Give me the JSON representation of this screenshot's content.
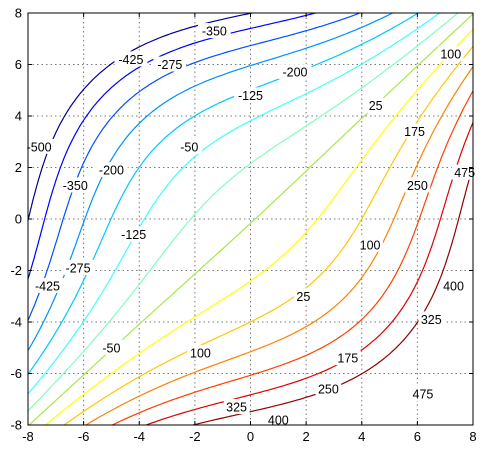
{
  "chart_data": {
    "type": "contour",
    "title": "",
    "xlabel": "",
    "ylabel": "",
    "xlim": [
      -8,
      8
    ],
    "ylim": [
      -8,
      8
    ],
    "grid": true,
    "x_ticks": [
      -8,
      -6,
      -4,
      -2,
      0,
      2,
      4,
      6,
      8
    ],
    "y_ticks": [
      -8,
      -6,
      -4,
      -2,
      0,
      2,
      4,
      6,
      8
    ],
    "x_tick_labels": [
      "-8",
      "-6",
      "-4",
      "-2",
      "0",
      "2",
      "4",
      "6",
      "8"
    ],
    "y_tick_labels": [
      "-8",
      "-6",
      "-4",
      "-2",
      "0",
      "2",
      "4",
      "6",
      "8"
    ],
    "levels": [
      -500,
      -425,
      -350,
      -275,
      -200,
      -125,
      -50,
      25,
      100,
      175,
      250,
      325,
      400,
      475
    ],
    "level_colors": [
      "#00008f",
      "#0000ff",
      "#0050ff",
      "#0090ff",
      "#00c8ff",
      "#40ffff",
      "#7fffbf",
      "#a8e848",
      "#ffff00",
      "#ffc800",
      "#ff8000",
      "#ff4000",
      "#e00000",
      "#8f0000"
    ],
    "contour_labels": [
      {
        "level": -350,
        "text": "-350",
        "x": -1.3,
        "y": 7.3
      },
      {
        "level": -425,
        "text": -425,
        "x": -4.3,
        "y": 6.2
      },
      {
        "level": -275,
        "text": -275,
        "x": -2.9,
        "y": 6.0
      },
      {
        "level": -200,
        "text": -200,
        "x": 1.6,
        "y": 5.7
      },
      {
        "level": -125,
        "text": -125,
        "x": 0.0,
        "y": 4.8
      },
      {
        "level": -50,
        "text": -50,
        "x": -2.2,
        "y": 2.8
      },
      {
        "level": 25,
        "text": 25,
        "x": 4.5,
        "y": 4.4
      },
      {
        "level": 100,
        "text": 100,
        "x": 7.2,
        "y": 6.4
      },
      {
        "level": 175,
        "text": 175,
        "x": 5.9,
        "y": 3.4
      },
      {
        "level": 250,
        "text": 250,
        "x": 6.0,
        "y": 1.3
      },
      {
        "level": 475,
        "text": 475,
        "x": 7.7,
        "y": 1.8
      },
      {
        "level": -500,
        "text": "-500",
        "x": -7.6,
        "y": 2.8
      },
      {
        "level": -350,
        "text": "-350",
        "x": -6.3,
        "y": 1.3
      },
      {
        "level": -200,
        "text": "-200",
        "x": -5.0,
        "y": 1.9
      },
      {
        "level": -125,
        "text": "-125",
        "x": -4.2,
        "y": -0.6
      },
      {
        "level": -425,
        "text": "-425",
        "x": -7.3,
        "y": -2.6
      },
      {
        "level": -275,
        "text": "-275",
        "x": -6.2,
        "y": -1.9
      },
      {
        "level": -50,
        "text": -50,
        "x": -5.0,
        "y": -5.0
      },
      {
        "level": 25,
        "text": "25",
        "x": 1.9,
        "y": -3.0
      },
      {
        "level": 100,
        "text": "100",
        "x": -1.8,
        "y": -5.2
      },
      {
        "level": 100,
        "text": "100",
        "x": 4.3,
        "y": -1.0
      },
      {
        "level": 175,
        "text": "175",
        "x": 3.5,
        "y": -5.4
      },
      {
        "level": 250,
        "text": "250",
        "x": 2.8,
        "y": -6.6
      },
      {
        "level": 325,
        "text": "325",
        "x": -0.5,
        "y": -7.3
      },
      {
        "level": 325,
        "text": "325",
        "x": 6.5,
        "y": -3.9
      },
      {
        "level": 400,
        "text": "400",
        "x": 1.0,
        "y": -7.8
      },
      {
        "level": 400,
        "text": "400",
        "x": 7.3,
        "y": -2.6
      },
      {
        "level": 475,
        "text": "475",
        "x": 6.2,
        "y": -6.8
      }
    ]
  }
}
